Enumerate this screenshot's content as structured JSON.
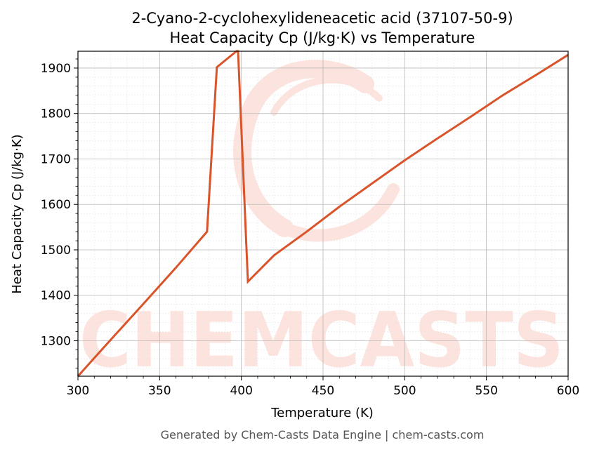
{
  "chart_data": {
    "type": "line",
    "title_line1": "2-Cyano-2-cyclohexylideneacetic acid (37107-50-9)",
    "title_line2": "Heat Capacity Cp (J/kg·K) vs Temperature",
    "xlabel": "Temperature (K)",
    "ylabel": "Heat Capacity Cp (J/kg·K)",
    "xlim": [
      300,
      600
    ],
    "ylim": [
      1222,
      1937
    ],
    "xticks": [
      300,
      350,
      400,
      450,
      500,
      550,
      600
    ],
    "yticks": [
      1300,
      1400,
      1500,
      1600,
      1700,
      1800,
      1900
    ],
    "grid": true,
    "line_color": "#d9542b",
    "series": [
      {
        "x": [
          300,
          320,
          340,
          360,
          379,
          385,
          397,
          398,
          404,
          420,
          440,
          460,
          480,
          500,
          520,
          540,
          560,
          580,
          600
        ],
        "y": [
          1222,
          1302,
          1381,
          1461,
          1540,
          1902,
          1937,
          1937,
          1430,
          1488,
          1540,
          1595,
          1646,
          1697,
          1745,
          1792,
          1840,
          1884,
          1929
        ]
      }
    ]
  },
  "watermark": "CHEMCASTS",
  "watermark_color": "#fde3dd",
  "footer": "Generated by Chem-Casts Data Engine | chem-casts.com"
}
